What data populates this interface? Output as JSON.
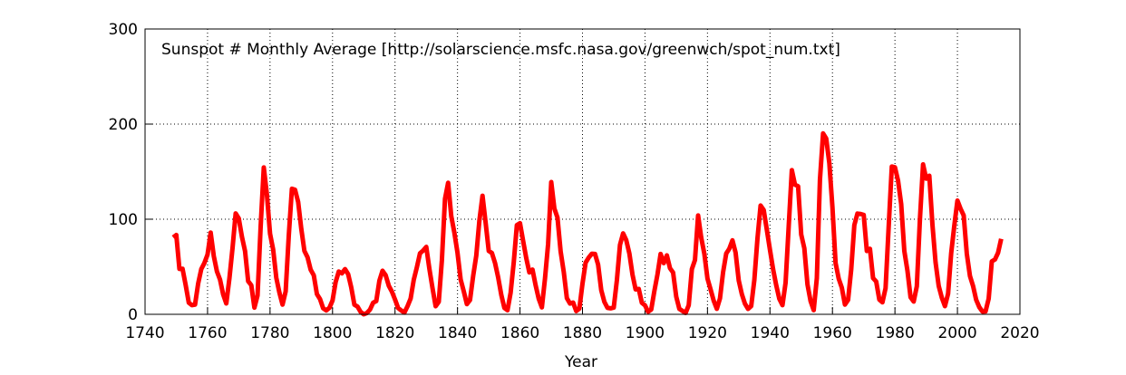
{
  "chart_data": {
    "type": "line",
    "title": "Sunspot # Monthly Average [http://solarscience.msfc.nasa.gov/greenwch/spot_num.txt]",
    "x_label": "Year",
    "color": "#ff0000",
    "grid": true,
    "xlim": [
      1740,
      2020
    ],
    "xticks": [
      1740,
      1760,
      1780,
      1800,
      1820,
      1840,
      1860,
      1880,
      1900,
      1920,
      1940,
      1960,
      1980,
      2000,
      2020
    ],
    "ylim": [
      0,
      300
    ],
    "yticks": [
      0,
      100,
      200,
      300
    ],
    "x": [
      1749,
      1750,
      1751,
      1752,
      1753,
      1754,
      1755,
      1756,
      1757,
      1758,
      1759,
      1760,
      1761,
      1762,
      1763,
      1764,
      1765,
      1766,
      1767,
      1768,
      1769,
      1770,
      1771,
      1772,
      1773,
      1774,
      1775,
      1776,
      1777,
      1778,
      1779,
      1780,
      1781,
      1782,
      1783,
      1784,
      1785,
      1786,
      1787,
      1788,
      1789,
      1790,
      1791,
      1792,
      1793,
      1794,
      1795,
      1796,
      1797,
      1798,
      1799,
      1800,
      1801,
      1802,
      1803,
      1804,
      1805,
      1806,
      1807,
      1808,
      1809,
      1810,
      1811,
      1812,
      1813,
      1814,
      1815,
      1816,
      1817,
      1818,
      1819,
      1820,
      1821,
      1822,
      1823,
      1824,
      1825,
      1826,
      1827,
      1828,
      1829,
      1830,
      1831,
      1832,
      1833,
      1834,
      1835,
      1836,
      1837,
      1838,
      1839,
      1840,
      1841,
      1842,
      1843,
      1844,
      1845,
      1846,
      1847,
      1848,
      1849,
      1850,
      1851,
      1852,
      1853,
      1854,
      1855,
      1856,
      1857,
      1858,
      1859,
      1860,
      1861,
      1862,
      1863,
      1864,
      1865,
      1866,
      1867,
      1868,
      1869,
      1870,
      1871,
      1872,
      1873,
      1874,
      1875,
      1876,
      1877,
      1878,
      1879,
      1880,
      1881,
      1882,
      1883,
      1884,
      1885,
      1886,
      1887,
      1888,
      1889,
      1890,
      1891,
      1892,
      1893,
      1894,
      1895,
      1896,
      1897,
      1898,
      1899,
      1900,
      1901,
      1902,
      1903,
      1904,
      1905,
      1906,
      1907,
      1908,
      1909,
      1910,
      1911,
      1912,
      1913,
      1914,
      1915,
      1916,
      1917,
      1918,
      1919,
      1920,
      1921,
      1922,
      1923,
      1924,
      1925,
      1926,
      1927,
      1928,
      1929,
      1930,
      1931,
      1932,
      1933,
      1934,
      1935,
      1936,
      1937,
      1938,
      1939,
      1940,
      1941,
      1942,
      1943,
      1944,
      1945,
      1946,
      1947,
      1948,
      1949,
      1950,
      1951,
      1952,
      1953,
      1954,
      1955,
      1956,
      1957,
      1958,
      1959,
      1960,
      1961,
      1962,
      1963,
      1964,
      1965,
      1966,
      1967,
      1968,
      1969,
      1970,
      1971,
      1972,
      1973,
      1974,
      1975,
      1976,
      1977,
      1978,
      1979,
      1980,
      1981,
      1982,
      1983,
      1984,
      1985,
      1986,
      1987,
      1988,
      1989,
      1990,
      1991,
      1992,
      1993,
      1994,
      1995,
      1996,
      1997,
      1998,
      1999,
      2000,
      2001,
      2002,
      2003,
      2004,
      2005,
      2006,
      2007,
      2008,
      2009,
      2010,
      2011,
      2012,
      2013,
      2014
    ],
    "values": [
      80.9,
      83.4,
      47.7,
      47.8,
      30.7,
      12.2,
      9.6,
      10.2,
      32.4,
      47.6,
      54,
      62.9,
      85.9,
      61.2,
      45.1,
      36.4,
      20.9,
      11.4,
      37.8,
      69.8,
      106.1,
      100.8,
      81.6,
      66.5,
      34.8,
      30.6,
      7,
      19.8,
      92.5,
      154.4,
      125.9,
      84.8,
      68.1,
      38.5,
      22.8,
      10.2,
      24.1,
      82.9,
      132,
      130.9,
      118.1,
      89.9,
      66.6,
      60,
      46.9,
      41,
      21.3,
      16,
      6.4,
      4.1,
      6.8,
      14.5,
      34,
      45,
      43.1,
      47.5,
      42.2,
      28.1,
      10.1,
      8.1,
      2.5,
      0,
      1.4,
      5,
      12.2,
      13.9,
      35.4,
      45.8,
      41.1,
      30.1,
      23.9,
      15.6,
      6.6,
      4,
      1.8,
      8.5,
      16.6,
      36.3,
      49.6,
      64.2,
      67,
      70.9,
      47.8,
      27.5,
      8.5,
      13.2,
      56.9,
      121.5,
      138.3,
      103.2,
      85.7,
      64.6,
      36.7,
      24.2,
      10.7,
      15,
      40.1,
      61.5,
      98.5,
      124.7,
      96.3,
      66.6,
      64.5,
      54.1,
      39,
      20.6,
      6.7,
      4.3,
      22.7,
      54.8,
      93.8,
      95.8,
      77.2,
      59.1,
      44,
      47,
      30.5,
      16.3,
      7.3,
      37.6,
      74,
      139,
      111.2,
      101.6,
      66.2,
      44.7,
      17,
      11.3,
      12.4,
      3.4,
      6,
      32.3,
      54.3,
      59.7,
      63.7,
      63.5,
      52.2,
      25.4,
      13.1,
      6.8,
      6.3,
      7.1,
      35.6,
      73,
      85.1,
      78,
      64,
      41.8,
      26.2,
      26.7,
      12.1,
      9.5,
      2.7,
      5,
      24.4,
      42,
      63.5,
      53.8,
      62,
      48.5,
      43.9,
      18.6,
      5.7,
      3.6,
      1.4,
      9.6,
      47.4,
      57.1,
      103.9,
      80.6,
      63.6,
      37.6,
      26.1,
      14.2,
      5.8,
      16.7,
      44.3,
      63.9,
      69,
      77.8,
      64.9,
      35.7,
      21.2,
      11.1,
      5.7,
      8.7,
      36.1,
      79.7,
      114.4,
      109.6,
      88.8,
      67.8,
      47.5,
      30.6,
      16.3,
      9.6,
      33.2,
      92.6,
      151.6,
      136.3,
      134.7,
      83.9,
      69.4,
      31.5,
      13.9,
      4.4,
      38,
      141.7,
      190.2,
      184.8,
      159,
      112.3,
      53.9,
      37.5,
      27.9,
      10.2,
      15.1,
      47,
      93.8,
      105.9,
      105.5,
      104.5,
      66.6,
      68.9,
      38,
      34.5,
      15.5,
      12.6,
      27.5,
      92.5,
      155.4,
      154.6,
      140.4,
      115.9,
      66.6,
      45.9,
      17.9,
      13.4,
      29.4,
      100.2,
      157.6,
      142.6,
      145.7,
      94.3,
      54.6,
      29.9,
      17.5,
      8.6,
      21.5,
      64.3,
      93.3,
      119.6,
      111,
      104,
      63.7,
      40.4,
      29.8,
      15.2,
      7.5,
      2.9,
      3.1,
      16.5,
      55.7,
      57.6,
      64.7,
      79.3
    ]
  }
}
